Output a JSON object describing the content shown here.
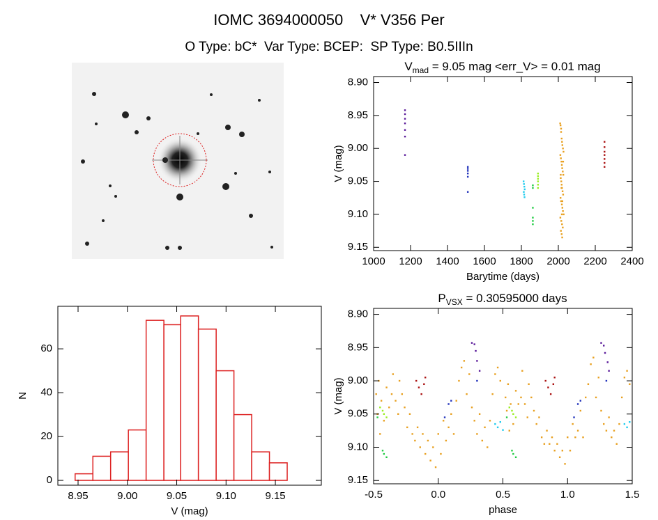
{
  "header": {
    "title": "IOMC 3694000050    V* V356 Per",
    "subtitle": "O Type: bC*  Var Type: BCEP:  SP Type: B0.5IIIn"
  },
  "chart_data": [
    {
      "type": "histogram",
      "x_label": "V (mag)",
      "y_label": "N",
      "bins": [
        8.947,
        8.965,
        8.983,
        9.001,
        9.019,
        9.037,
        9.054,
        9.072,
        9.09,
        9.108,
        9.126,
        9.144,
        9.162
      ],
      "values": [
        3,
        11,
        13,
        23,
        73,
        71,
        75,
        69,
        50,
        30,
        13,
        8
      ],
      "color": "#dd2222",
      "xlim": [
        8.9295,
        9.1966
      ],
      "xticks": [
        8.95,
        {
          "value": 9.0,
          "label": "9.00"
        },
        9.05,
        {
          "value": 9.1,
          "label": "9.10"
        },
        9.15
      ],
      "ylim": [
        -2.2,
        79.4
      ],
      "yticks": [
        0,
        20,
        40,
        60
      ]
    },
    {
      "type": "scatter",
      "title": {
        "main": "V",
        "sub": "mad",
        "rest": " = 9.05 mag <err_V> = 0.01 mag"
      },
      "x_label": "Barytime (days)",
      "y_label": "V (mag)",
      "xlim": [
        1000,
        2400
      ],
      "xticks": [
        1000,
        1200,
        1400,
        1600,
        1800,
        2000,
        2200,
        2400
      ],
      "ylim": [
        9.155,
        8.891
      ],
      "yticks": [
        {
          "value": 8.9,
          "label": "8.90"
        },
        8.95,
        {
          "value": 9.0,
          "label": "9.00"
        },
        9.05,
        {
          "value": 9.1,
          "label": "9.10"
        },
        9.15
      ],
      "series": [
        {
          "color": "#5a1a9a",
          "x": [
            1170,
            1170,
            1170,
            1170,
            1170,
            1170,
            1170
          ],
          "values": [
            8.942,
            8.948,
            8.955,
            8.962,
            8.972,
            8.982,
            9.01
          ]
        },
        {
          "color": "#2233bb",
          "x": [
            1510,
            1510,
            1510,
            1510,
            1510,
            1510
          ],
          "values": [
            9.028,
            9.031,
            9.034,
            9.038,
            9.043,
            9.066
          ]
        },
        {
          "color": "#22ccee",
          "x": [
            1812,
            1814,
            1816,
            1818,
            1813,
            1815,
            1817
          ],
          "values": [
            9.05,
            9.054,
            9.058,
            9.062,
            9.066,
            9.07,
            9.074
          ]
        },
        {
          "color": "#22cc44",
          "x": [
            1862,
            1862,
            1862,
            1862,
            1862,
            1862
          ],
          "values": [
            9.056,
            9.06,
            9.09,
            9.105,
            9.11,
            9.115
          ]
        },
        {
          "color": "#99ee22",
          "x": [
            1890,
            1890,
            1890,
            1890,
            1890,
            1890
          ],
          "values": [
            9.038,
            9.042,
            9.046,
            9.05,
            9.055,
            9.06
          ]
        },
        {
          "color": "#e8a020",
          "x": [
            2010,
            2012,
            2015,
            2018,
            2020,
            2022,
            2025,
            2028,
            2011,
            2014,
            2017,
            2019,
            2021,
            2024,
            2027,
            2013,
            2016,
            2018,
            2020,
            2023,
            2026,
            2012,
            2015,
            2019,
            2022,
            2025,
            2029,
            2011,
            2016,
            2020,
            2024,
            2014,
            2018,
            2021,
            2026,
            2013,
            2017,
            2022,
            2019,
            2015
          ],
          "values": [
            8.962,
            8.965,
            8.975,
            8.985,
            8.99,
            8.995,
            9.0,
            9.005,
            9.01,
            9.015,
            9.02,
            9.025,
            9.03,
            9.035,
            9.04,
            9.045,
            9.05,
            9.055,
            9.06,
            9.065,
            9.07,
            9.075,
            9.08,
            9.085,
            9.09,
            9.095,
            9.1,
            9.105,
            9.11,
            9.115,
            9.12,
            9.125,
            9.13,
            9.135,
            9.02,
            9.04,
            9.06,
            9.08,
            9.1,
            8.97
          ]
        },
        {
          "color": "#aa1111",
          "x": [
            2250,
            2250,
            2250,
            2250,
            2250,
            2250,
            2250
          ],
          "values": [
            8.99,
            8.998,
            9.005,
            9.01,
            9.016,
            9.022,
            9.028
          ]
        }
      ]
    },
    {
      "type": "scatter",
      "title": {
        "main": "P",
        "sub": "VSX",
        "rest": " = 0.30595000 days"
      },
      "x_label": "phase",
      "y_label": "V (mag)",
      "xlim": [
        -0.5,
        1.5
      ],
      "xticks": [
        -0.5,
        {
          "value": 0,
          "label": "0.0"
        },
        0.5,
        {
          "value": 1,
          "label": "1.0"
        },
        1.5
      ],
      "ylim": [
        9.155,
        8.891
      ],
      "yticks": [
        {
          "value": 8.9,
          "label": "8.90"
        },
        8.95,
        {
          "value": 9.0,
          "label": "9.00"
        },
        9.05,
        {
          "value": 9.1,
          "label": "9.10"
        },
        9.15
      ],
      "series": [
        {
          "color": "#e8a020",
          "x": [
            -0.48,
            -0.47,
            -0.46,
            -0.45,
            -0.44,
            -0.42,
            -0.4,
            -0.38,
            -0.36,
            -0.35,
            -0.33,
            -0.31,
            -0.3,
            -0.28,
            -0.26,
            -0.24,
            -0.22,
            -0.2,
            -0.18,
            -0.16,
            -0.14,
            -0.12,
            -0.1,
            -0.08,
            -0.06,
            -0.04,
            -0.02,
            0.0,
            0.02,
            0.04,
            0.06,
            0.08,
            0.1,
            0.12,
            0.14,
            0.16,
            0.18,
            0.2,
            0.22,
            0.24,
            0.26,
            0.28,
            0.3,
            0.32,
            0.34,
            0.36,
            0.38,
            0.4,
            0.42,
            0.44,
            0.46,
            0.48,
            0.52,
            0.53,
            0.54,
            0.55,
            0.56,
            0.58,
            0.6,
            0.62,
            0.64,
            0.65,
            0.67,
            0.69,
            0.7,
            0.72,
            0.74,
            0.76,
            0.78,
            0.8,
            0.82,
            0.84,
            0.86,
            0.88,
            0.9,
            0.92,
            0.94,
            0.96,
            0.98,
            1.0,
            1.02,
            1.04,
            1.06,
            1.08,
            1.1,
            1.12,
            1.14,
            1.16,
            1.18,
            1.2,
            1.22,
            1.24,
            1.26,
            1.28,
            1.3,
            1.32,
            1.34,
            1.36,
            1.38,
            1.4,
            1.42,
            1.44,
            1.46,
            1.48
          ],
          "values": [
            9.02,
            9.05,
            9.0,
            9.08,
            9.03,
            9.06,
            9.01,
            9.04,
            9.02,
            8.99,
            9.03,
            9.05,
            9.0,
            9.02,
            9.04,
            9.07,
            9.05,
            9.08,
            9.09,
            9.07,
            9.1,
            9.08,
            9.11,
            9.09,
            9.12,
            9.1,
            9.13,
            9.08,
            9.11,
            9.06,
            9.09,
            9.07,
            9.05,
            9.08,
            9.03,
            9.0,
            8.98,
            8.97,
            9.02,
            8.99,
            9.04,
            9.06,
            9.08,
            9.05,
            9.09,
            9.07,
            9.1,
            9.06,
            9.02,
            8.99,
            8.98,
            9.0,
            9.025,
            9.045,
            9.005,
            9.075,
            9.035,
            9.065,
            9.015,
            9.035,
            9.025,
            8.985,
            9.035,
            9.055,
            9.005,
            9.025,
            9.045,
            9.065,
            9.055,
            9.085,
            9.095,
            9.075,
            9.095,
            9.085,
            9.105,
            9.095,
            9.115,
            9.105,
            9.125,
            9.085,
            9.105,
            9.065,
            9.085,
            9.075,
            9.045,
            9.085,
            9.025,
            9.005,
            8.975,
            8.965,
            9.025,
            8.995,
            9.045,
            9.065,
            9.075,
            9.055,
            9.085,
            9.075,
            9.095,
            9.065,
            9.025,
            8.995,
            8.985,
            9.005
          ]
        },
        {
          "color": "#5a1a9a",
          "x": [
            0.26,
            0.28,
            0.29,
            0.3,
            0.32,
            1.26,
            1.28,
            1.29,
            1.31,
            1.32
          ],
          "values": [
            8.943,
            8.945,
            8.955,
            8.97,
            8.985,
            8.943,
            8.947,
            8.958,
            8.972,
            8.985
          ]
        },
        {
          "color": "#2233bb",
          "x": [
            0.05,
            0.08,
            0.1,
            0.3,
            1.05,
            1.08,
            1.1,
            1.3
          ],
          "values": [
            9.055,
            9.035,
            9.03,
            9.0,
            9.055,
            9.035,
            9.03,
            9.0
          ]
        },
        {
          "color": "#22ccee",
          "x": [
            0.44,
            0.46,
            0.48,
            0.5,
            1.44,
            1.46,
            1.48
          ],
          "values": [
            9.065,
            9.07,
            9.062,
            9.074,
            9.065,
            9.07,
            9.062
          ]
        },
        {
          "color": "#22cc44",
          "x": [
            0.57,
            0.58,
            0.6,
            0.53,
            -0.43,
            -0.42,
            -0.4,
            -0.47
          ],
          "values": [
            9.105,
            9.11,
            9.115,
            9.055,
            9.105,
            9.11,
            9.115,
            9.055
          ]
        },
        {
          "color": "#99ee22",
          "x": [
            0.55,
            0.57,
            0.58,
            0.6,
            -0.45,
            -0.43,
            -0.42,
            -0.4
          ],
          "values": [
            9.04,
            9.045,
            9.05,
            9.055,
            9.04,
            9.045,
            9.05,
            9.055
          ]
        },
        {
          "color": "#aa1111",
          "x": [
            -0.17,
            -0.15,
            -0.13,
            -0.11,
            -0.1,
            0.83,
            0.85,
            0.87,
            0.89,
            0.9
          ],
          "values": [
            9.0,
            9.01,
            9.02,
            9.005,
            8.995,
            9.0,
            9.01,
            9.02,
            9.005,
            8.995
          ]
        }
      ]
    }
  ]
}
